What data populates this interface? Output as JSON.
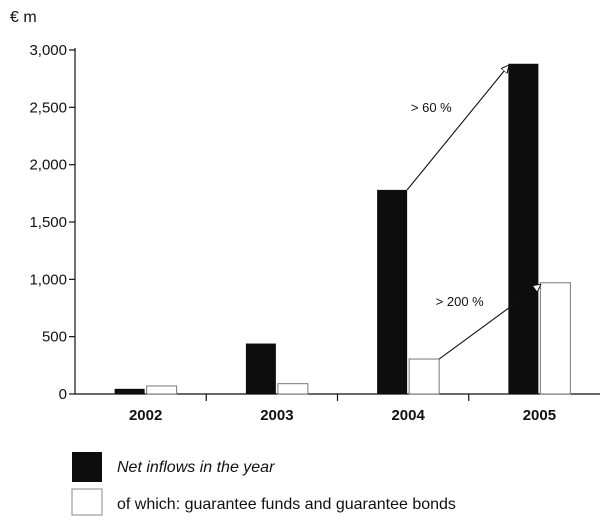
{
  "chart_data": {
    "type": "bar",
    "unit_label": "€ m",
    "categories": [
      "2002",
      "2003",
      "2004",
      "2005"
    ],
    "series": [
      {
        "name": "Net inflows in the year",
        "values": [
          45,
          440,
          1780,
          2880
        ],
        "color": "#0d0d0d"
      },
      {
        "name": "of which: guarantee funds and guarantee bonds",
        "values": [
          70,
          90,
          305,
          970
        ],
        "color": "#ffffff"
      }
    ],
    "yticks": [
      0,
      500,
      1000,
      1500,
      2000,
      2500,
      3000
    ],
    "ytick_labels": [
      "0",
      "500",
      "1,000",
      "1,500",
      "2,000",
      "2,500",
      "3,000"
    ],
    "ylim": [
      0,
      3000
    ],
    "annotations": [
      {
        "text": "> 60 %",
        "from_series": 0,
        "from_category": 2,
        "to_category": 3
      },
      {
        "text": "> 200 %",
        "from_series": 1,
        "from_category": 2,
        "to_category": 3
      }
    ],
    "legend_position": "bottom-left",
    "grid": false
  }
}
